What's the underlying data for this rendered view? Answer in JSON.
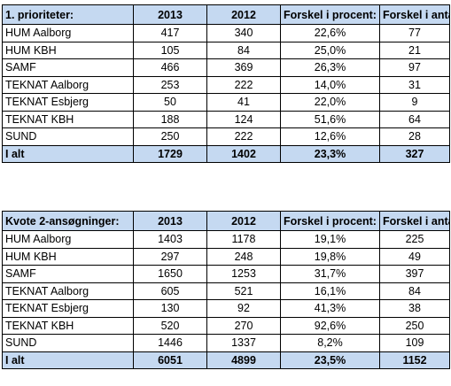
{
  "tables": [
    {
      "headers": [
        "1. prioriteter:",
        "2013",
        "2012",
        "Forskel i procent:",
        "Forskel i antal:"
      ],
      "rows": [
        [
          "HUM Aalborg",
          "417",
          "340",
          "22,6%",
          "77"
        ],
        [
          "HUM KBH",
          "105",
          "84",
          "25,0%",
          "21"
        ],
        [
          "SAMF",
          "466",
          "369",
          "26,3%",
          "97"
        ],
        [
          "TEKNAT Aalborg",
          "253",
          "222",
          "14,0%",
          "31"
        ],
        [
          "TEKNAT Esbjerg",
          "50",
          "41",
          "22,0%",
          "9"
        ],
        [
          "TEKNAT KBH",
          "188",
          "124",
          "51,6%",
          "64"
        ],
        [
          "SUND",
          "250",
          "222",
          "12,6%",
          "28"
        ]
      ],
      "total": [
        "I alt",
        "1729",
        "1402",
        "23,3%",
        "327"
      ]
    },
    {
      "headers": [
        "Kvote 2-ansøgninger:",
        "2013",
        "2012",
        "Forskel i procent:",
        "Forskel i antal:"
      ],
      "rows": [
        [
          "HUM Aalborg",
          "1403",
          "1178",
          "19,1%",
          "225"
        ],
        [
          "HUM KBH",
          "297",
          "248",
          "19,8%",
          "49"
        ],
        [
          "SAMF",
          "1650",
          "1253",
          "31,7%",
          "397"
        ],
        [
          "TEKNAT Aalborg",
          "605",
          "521",
          "16,1%",
          "84"
        ],
        [
          "TEKNAT Esbjerg",
          "130",
          "92",
          "41,3%",
          "38"
        ],
        [
          "TEKNAT KBH",
          "520",
          "270",
          "92,6%",
          "250"
        ],
        [
          "SUND",
          "1446",
          "1337",
          "8,2%",
          "109"
        ]
      ],
      "total": [
        "I alt",
        "6051",
        "4899",
        "23,5%",
        "1152"
      ]
    }
  ],
  "colors": {
    "header_fill": "#c5d9f1",
    "border": "#000000",
    "background": "#ffffff"
  }
}
